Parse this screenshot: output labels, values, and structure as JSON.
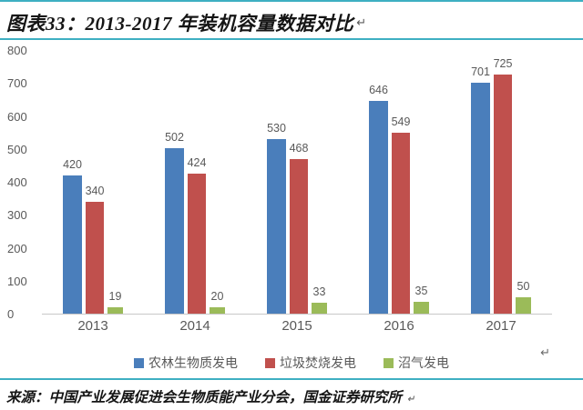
{
  "header": {
    "title": "图表33：2013-2017 年装机容量数据对比",
    "return_mark": "↵"
  },
  "chart_data": {
    "type": "bar",
    "title": "2013-2017 年装机容量数据对比",
    "categories": [
      "2013",
      "2014",
      "2015",
      "2016",
      "2017"
    ],
    "series": [
      {
        "name": "农林生物质发电",
        "color": "#4a7ebb",
        "values": [
          420,
          502,
          530,
          646,
          701
        ]
      },
      {
        "name": "垃圾焚烧发电",
        "color": "#c0504d",
        "values": [
          340,
          424,
          468,
          549,
          725
        ]
      },
      {
        "name": "沼气发电",
        "color": "#9bbb59",
        "values": [
          19,
          20,
          33,
          35,
          50
        ]
      }
    ],
    "xlabel": "",
    "ylabel": "",
    "ylim": [
      0,
      800
    ],
    "yticks": [
      0,
      100,
      200,
      300,
      400,
      500,
      600,
      700,
      800
    ],
    "grid": false,
    "data_labels": true,
    "legend_position": "bottom"
  },
  "legend": {
    "return_mark": "↵"
  },
  "footer": {
    "source": "来源：中国产业发展促进会生物质能产业分会，国金证券研究所",
    "end_mark": "↵"
  },
  "colors": {
    "accent_rule": "#3eafc2",
    "axis_text": "#595959",
    "baseline": "#c8c8c8"
  }
}
